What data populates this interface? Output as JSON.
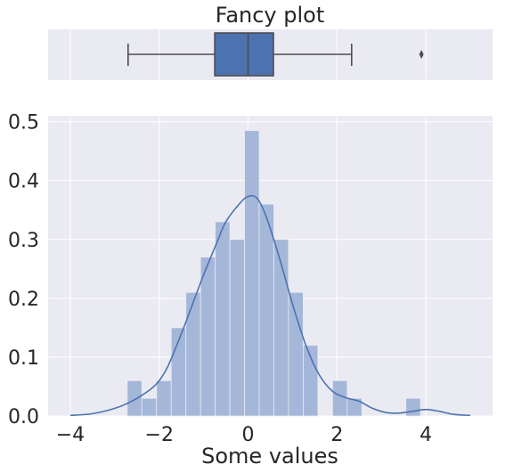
{
  "chart_data": [
    {
      "type": "box",
      "title": "Fancy plot",
      "box_color": "#4c72b0",
      "line_color": "#4d4d4d",
      "stats": {
        "whisker_low": -2.7,
        "q1": -0.75,
        "median": 0.0,
        "q3": 0.57,
        "whisker_high": 2.33,
        "outliers": [
          3.9
        ]
      },
      "xlim": [
        -4.5,
        5.5
      ],
      "grid": true
    },
    {
      "type": "bar",
      "subtype": "histogram with kde",
      "xlabel": "Some values",
      "ylabel": "",
      "xlim": [
        -4.5,
        5.5
      ],
      "ylim": [
        0,
        0.51
      ],
      "xticks": [
        -4,
        -2,
        0,
        2,
        4
      ],
      "xtick_labels": [
        "−4",
        "−2",
        "0",
        "2",
        "4"
      ],
      "yticks": [
        0.0,
        0.1,
        0.2,
        0.3,
        0.4,
        0.5
      ],
      "ytick_labels": [
        "0.0",
        "0.1",
        "0.2",
        "0.3",
        "0.4",
        "0.5"
      ],
      "bar_color": "#a5b7d9",
      "kde_color": "#4c72b0",
      "grid": true,
      "bins": [
        {
          "x0": -2.72,
          "x1": -2.39,
          "value": 0.06
        },
        {
          "x0": -2.39,
          "x1": -2.06,
          "value": 0.03
        },
        {
          "x0": -2.06,
          "x1": -1.73,
          "value": 0.06
        },
        {
          "x0": -1.73,
          "x1": -1.4,
          "value": 0.15
        },
        {
          "x0": -1.4,
          "x1": -1.07,
          "value": 0.21
        },
        {
          "x0": -1.07,
          "x1": -0.74,
          "value": 0.27
        },
        {
          "x0": -0.74,
          "x1": -0.41,
          "value": 0.33
        },
        {
          "x0": -0.41,
          "x1": -0.08,
          "value": 0.3
        },
        {
          "x0": -0.08,
          "x1": 0.25,
          "value": 0.485
        },
        {
          "x0": 0.25,
          "x1": 0.58,
          "value": 0.36
        },
        {
          "x0": 0.58,
          "x1": 0.91,
          "value": 0.3
        },
        {
          "x0": 0.91,
          "x1": 1.24,
          "value": 0.21
        },
        {
          "x0": 1.24,
          "x1": 1.57,
          "value": 0.12
        },
        {
          "x0": 1.57,
          "x1": 1.9,
          "value": 0.0
        },
        {
          "x0": 1.9,
          "x1": 2.23,
          "value": 0.06
        },
        {
          "x0": 2.23,
          "x1": 2.56,
          "value": 0.03
        },
        {
          "x0": 2.56,
          "x1": 2.89,
          "value": 0.0
        },
        {
          "x0": 2.89,
          "x1": 3.22,
          "value": 0.0
        },
        {
          "x0": 3.22,
          "x1": 3.55,
          "value": 0.0
        },
        {
          "x0": 3.55,
          "x1": 3.88,
          "value": 0.03
        }
      ],
      "kde": {
        "x": [
          -4.0,
          -3.5,
          -3.0,
          -2.7,
          -2.5,
          -2.2,
          -2.0,
          -1.8,
          -1.5,
          -1.2,
          -1.0,
          -0.7,
          -0.5,
          -0.2,
          0.0,
          0.2,
          0.4,
          0.7,
          1.0,
          1.3,
          1.6,
          1.9,
          2.2,
          2.5,
          2.8,
          3.1,
          3.4,
          3.7,
          4.0,
          4.3,
          4.6,
          5.0
        ],
        "y": [
          0.001,
          0.004,
          0.013,
          0.022,
          0.03,
          0.045,
          0.06,
          0.085,
          0.14,
          0.2,
          0.24,
          0.295,
          0.33,
          0.36,
          0.373,
          0.37,
          0.34,
          0.27,
          0.19,
          0.12,
          0.07,
          0.042,
          0.031,
          0.025,
          0.013,
          0.006,
          0.005,
          0.008,
          0.011,
          0.008,
          0.003,
          0.001
        ]
      }
    }
  ]
}
